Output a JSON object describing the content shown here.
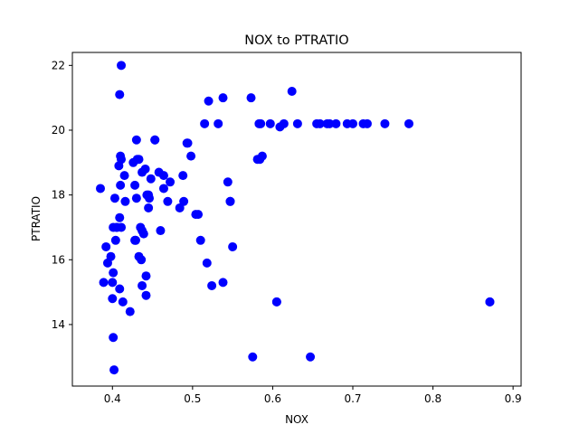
{
  "chart_data": {
    "type": "scatter",
    "title": "NOX to PTRATIO",
    "xlabel": "NOX",
    "ylabel": "PTRATIO",
    "xlim": [
      0.35,
      0.91
    ],
    "ylim": [
      12.1,
      22.4
    ],
    "xticks": [
      0.4,
      0.5,
      0.6,
      0.7,
      0.8,
      0.9
    ],
    "xtick_labels": [
      "0.4",
      "0.5",
      "0.6",
      "0.7",
      "0.8",
      "0.9"
    ],
    "yticks": [
      14,
      16,
      18,
      20,
      22
    ],
    "ytick_labels": [
      "14",
      "16",
      "18",
      "20",
      "22"
    ],
    "grid": false,
    "marker_color": "#0000ff",
    "points": [
      [
        0.385,
        18.2
      ],
      [
        0.389,
        15.3
      ],
      [
        0.392,
        16.4
      ],
      [
        0.394,
        15.9
      ],
      [
        0.398,
        16.1
      ],
      [
        0.4,
        15.3
      ],
      [
        0.4,
        14.8
      ],
      [
        0.401,
        15.6
      ],
      [
        0.401,
        13.6
      ],
      [
        0.402,
        12.6
      ],
      [
        0.401,
        17.0
      ],
      [
        0.403,
        17.9
      ],
      [
        0.404,
        16.6
      ],
      [
        0.405,
        17.0
      ],
      [
        0.406,
        17.0
      ],
      [
        0.408,
        18.9
      ],
      [
        0.409,
        21.1
      ],
      [
        0.41,
        18.3
      ],
      [
        0.41,
        19.2
      ],
      [
        0.411,
        19.1
      ],
      [
        0.411,
        22.0
      ],
      [
        0.409,
        17.3
      ],
      [
        0.409,
        15.1
      ],
      [
        0.411,
        17.0
      ],
      [
        0.413,
        14.7
      ],
      [
        0.415,
        18.6
      ],
      [
        0.416,
        17.8
      ],
      [
        0.422,
        14.4
      ],
      [
        0.426,
        19.0
      ],
      [
        0.428,
        18.3
      ],
      [
        0.428,
        16.6
      ],
      [
        0.429,
        16.6
      ],
      [
        0.43,
        19.7
      ],
      [
        0.43,
        17.9
      ],
      [
        0.431,
        19.1
      ],
      [
        0.433,
        16.1
      ],
      [
        0.433,
        19.1
      ],
      [
        0.435,
        17.0
      ],
      [
        0.436,
        16.0
      ],
      [
        0.437,
        16.9
      ],
      [
        0.437,
        15.2
      ],
      [
        0.437,
        18.7
      ],
      [
        0.439,
        16.8
      ],
      [
        0.441,
        18.8
      ],
      [
        0.442,
        15.5
      ],
      [
        0.442,
        14.9
      ],
      [
        0.443,
        18.0
      ],
      [
        0.445,
        18.0
      ],
      [
        0.445,
        17.6
      ],
      [
        0.446,
        17.9
      ],
      [
        0.448,
        18.5
      ],
      [
        0.453,
        19.7
      ],
      [
        0.453,
        19.7
      ],
      [
        0.458,
        18.7
      ],
      [
        0.46,
        16.9
      ],
      [
        0.464,
        18.6
      ],
      [
        0.464,
        18.2
      ],
      [
        0.469,
        17.8
      ],
      [
        0.472,
        18.4
      ],
      [
        0.484,
        17.6
      ],
      [
        0.488,
        18.6
      ],
      [
        0.489,
        17.8
      ],
      [
        0.493,
        19.6
      ],
      [
        0.494,
        19.6
      ],
      [
        0.498,
        19.2
      ],
      [
        0.504,
        17.4
      ],
      [
        0.507,
        17.4
      ],
      [
        0.51,
        16.6
      ],
      [
        0.515,
        20.2
      ],
      [
        0.518,
        15.9
      ],
      [
        0.52,
        20.9
      ],
      [
        0.524,
        15.2
      ],
      [
        0.532,
        20.2
      ],
      [
        0.538,
        21.0
      ],
      [
        0.538,
        15.3
      ],
      [
        0.544,
        18.4
      ],
      [
        0.547,
        17.8
      ],
      [
        0.547,
        17.8
      ],
      [
        0.55,
        16.4
      ],
      [
        0.573,
        21.0
      ],
      [
        0.575,
        13.0
      ],
      [
        0.581,
        19.1
      ],
      [
        0.583,
        20.2
      ],
      [
        0.584,
        19.1
      ],
      [
        0.585,
        20.2
      ],
      [
        0.587,
        19.2
      ],
      [
        0.597,
        20.2
      ],
      [
        0.605,
        14.7
      ],
      [
        0.605,
        14.7
      ],
      [
        0.609,
        20.1
      ],
      [
        0.614,
        20.2
      ],
      [
        0.624,
        21.2
      ],
      [
        0.631,
        20.2
      ],
      [
        0.647,
        13.0
      ],
      [
        0.655,
        20.2
      ],
      [
        0.659,
        20.2
      ],
      [
        0.668,
        20.2
      ],
      [
        0.671,
        20.2
      ],
      [
        0.679,
        20.2
      ],
      [
        0.693,
        20.2
      ],
      [
        0.7,
        20.2
      ],
      [
        0.713,
        20.2
      ],
      [
        0.718,
        20.2
      ],
      [
        0.74,
        20.2
      ],
      [
        0.77,
        20.2
      ],
      [
        0.871,
        14.7
      ],
      [
        0.871,
        14.7
      ]
    ]
  }
}
